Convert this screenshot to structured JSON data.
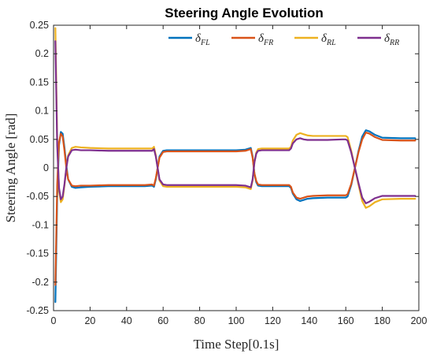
{
  "chart_data": {
    "type": "line",
    "title": "Steering Angle Evolution",
    "xlabel": "Time Step[0.1s]",
    "ylabel": "Steering Angle [rad]",
    "xlim": [
      0,
      200
    ],
    "ylim": [
      -0.25,
      0.25
    ],
    "xticks": [
      "0",
      "20",
      "40",
      "60",
      "80",
      "100",
      "120",
      "140",
      "160",
      "180",
      "200"
    ],
    "yticks": [
      "-0.25",
      "-0.2",
      "-0.15",
      "-0.1",
      "-0.05",
      "0",
      "0.05",
      "0.1",
      "0.15",
      "0.2",
      "0.25"
    ],
    "grid": false,
    "legend_position": "top-right",
    "series": [
      {
        "name": "δ_FL",
        "legend_main": "δ",
        "legend_sub": "FL",
        "color": "#0072BD",
        "x": [
          1,
          2,
          3,
          4,
          5,
          6,
          7,
          8,
          10,
          12,
          15,
          20,
          30,
          40,
          50,
          54,
          55,
          56,
          57,
          58,
          60,
          62,
          65,
          70,
          80,
          90,
          100,
          105,
          108,
          109,
          110,
          111,
          112,
          114,
          116,
          120,
          125,
          129,
          130,
          131,
          133,
          135,
          137,
          139,
          142,
          150,
          158,
          160,
          161,
          163,
          165,
          167,
          169,
          171,
          173,
          176,
          180,
          190,
          198
        ],
        "y": [
          -0.235,
          -0.05,
          0.04,
          0.063,
          0.06,
          0.035,
          0.005,
          -0.02,
          -0.033,
          -0.035,
          -0.034,
          -0.033,
          -0.032,
          -0.032,
          -0.032,
          -0.031,
          -0.033,
          -0.02,
          0.0,
          0.02,
          0.03,
          0.031,
          0.031,
          0.031,
          0.031,
          0.031,
          0.031,
          0.032,
          0.035,
          0.02,
          -0.01,
          -0.025,
          -0.031,
          -0.032,
          -0.032,
          -0.032,
          -0.032,
          -0.032,
          -0.035,
          -0.045,
          -0.055,
          -0.058,
          -0.056,
          -0.054,
          -0.053,
          -0.052,
          -0.052,
          -0.052,
          -0.05,
          -0.03,
          0.0,
          0.03,
          0.055,
          0.066,
          0.064,
          0.058,
          0.053,
          0.052,
          0.052
        ]
      },
      {
        "name": "δ_FR",
        "legend_main": "δ",
        "legend_sub": "FR",
        "color": "#D95319",
        "x": [
          1,
          2,
          3,
          4,
          5,
          6,
          7,
          8,
          10,
          12,
          15,
          20,
          30,
          40,
          50,
          54,
          55,
          56,
          57,
          58,
          60,
          62,
          65,
          70,
          80,
          90,
          100,
          105,
          108,
          109,
          110,
          111,
          112,
          114,
          116,
          120,
          125,
          129,
          130,
          131,
          133,
          135,
          137,
          139,
          142,
          150,
          158,
          160,
          161,
          163,
          165,
          167,
          169,
          171,
          173,
          176,
          180,
          190,
          198
        ],
        "y": [
          -0.205,
          -0.03,
          0.045,
          0.06,
          0.055,
          0.03,
          0.0,
          -0.02,
          -0.031,
          -0.032,
          -0.031,
          -0.031,
          -0.03,
          -0.03,
          -0.03,
          -0.029,
          -0.031,
          -0.018,
          0.0,
          0.018,
          0.028,
          0.029,
          0.029,
          0.029,
          0.029,
          0.029,
          0.029,
          0.03,
          0.033,
          0.018,
          -0.01,
          -0.023,
          -0.029,
          -0.03,
          -0.03,
          -0.03,
          -0.03,
          -0.03,
          -0.033,
          -0.043,
          -0.052,
          -0.054,
          -0.052,
          -0.05,
          -0.049,
          -0.048,
          -0.048,
          -0.048,
          -0.046,
          -0.028,
          0.0,
          0.028,
          0.05,
          0.062,
          0.06,
          0.054,
          0.049,
          0.048,
          0.048
        ]
      },
      {
        "name": "δ_RL",
        "legend_main": "δ",
        "legend_sub": "RL",
        "color": "#EDB120",
        "x": [
          1,
          2,
          3,
          4,
          5,
          6,
          7,
          8,
          10,
          12,
          15,
          20,
          30,
          40,
          50,
          54,
          55,
          56,
          57,
          58,
          60,
          62,
          65,
          70,
          80,
          90,
          100,
          105,
          108,
          109,
          110,
          111,
          112,
          114,
          116,
          120,
          125,
          129,
          130,
          131,
          133,
          135,
          137,
          139,
          142,
          150,
          158,
          160,
          161,
          163,
          165,
          167,
          169,
          171,
          173,
          176,
          180,
          190,
          198
        ],
        "y": [
          0.245,
          0.05,
          -0.04,
          -0.06,
          -0.055,
          -0.03,
          0.0,
          0.022,
          0.035,
          0.037,
          0.036,
          0.035,
          0.034,
          0.034,
          0.034,
          0.034,
          0.037,
          0.022,
          0.0,
          -0.022,
          -0.032,
          -0.033,
          -0.033,
          -0.033,
          -0.033,
          -0.033,
          -0.033,
          -0.034,
          -0.037,
          -0.022,
          0.01,
          0.027,
          0.033,
          0.034,
          0.034,
          0.034,
          0.034,
          0.034,
          0.037,
          0.048,
          0.058,
          0.061,
          0.059,
          0.057,
          0.056,
          0.056,
          0.056,
          0.056,
          0.054,
          0.03,
          0.0,
          -0.03,
          -0.058,
          -0.07,
          -0.067,
          -0.06,
          -0.055,
          -0.054,
          -0.054
        ]
      },
      {
        "name": "δ_RR",
        "legend_main": "δ",
        "legend_sub": "RR",
        "color": "#7E2F8E",
        "x": [
          1,
          2,
          3,
          4,
          5,
          6,
          7,
          8,
          10,
          12,
          15,
          20,
          30,
          40,
          50,
          54,
          55,
          56,
          57,
          58,
          60,
          62,
          65,
          70,
          80,
          90,
          100,
          105,
          108,
          109,
          110,
          111,
          112,
          114,
          116,
          120,
          125,
          129,
          130,
          131,
          133,
          135,
          137,
          139,
          142,
          150,
          158,
          160,
          161,
          163,
          165,
          167,
          169,
          171,
          173,
          176,
          180,
          190,
          198
        ],
        "y": [
          0.222,
          0.04,
          -0.035,
          -0.055,
          -0.05,
          -0.028,
          0.0,
          0.02,
          0.031,
          0.032,
          0.031,
          0.031,
          0.03,
          0.03,
          0.03,
          0.03,
          0.033,
          0.02,
          0.0,
          -0.02,
          -0.029,
          -0.03,
          -0.03,
          -0.03,
          -0.03,
          -0.03,
          -0.03,
          -0.031,
          -0.034,
          -0.02,
          0.01,
          0.025,
          0.03,
          0.031,
          0.031,
          0.031,
          0.031,
          0.031,
          0.034,
          0.043,
          0.05,
          0.052,
          0.05,
          0.049,
          0.049,
          0.049,
          0.05,
          0.05,
          0.048,
          0.027,
          0.0,
          -0.027,
          -0.052,
          -0.062,
          -0.059,
          -0.053,
          -0.049,
          -0.049,
          -0.049
        ]
      }
    ]
  }
}
